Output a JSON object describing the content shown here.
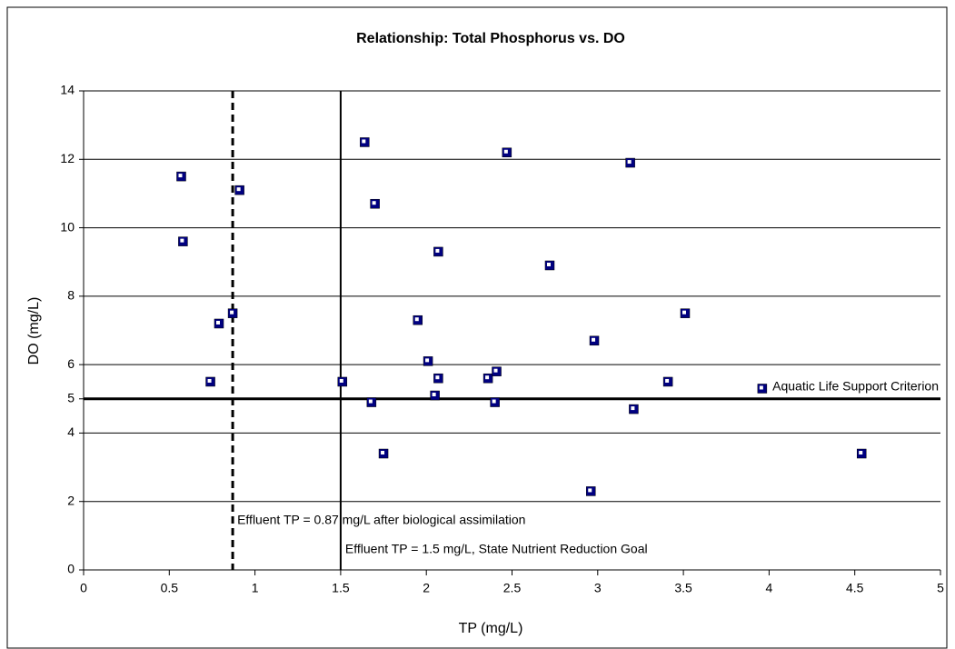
{
  "chart_data": {
    "type": "scatter",
    "title": "Relationship: Total Phosphorus vs. DO",
    "x_label": "TP  (mg/L)",
    "y_label": "DO (mg/L)",
    "xlim": [
      0,
      5
    ],
    "xticks": [
      0,
      0.5,
      1,
      1.5,
      2,
      2.5,
      3,
      3.5,
      4,
      4.5,
      5
    ],
    "ylim": [
      0,
      14
    ],
    "yticks": [
      0,
      2,
      4,
      5,
      6,
      8,
      10,
      12,
      14
    ],
    "grid": true,
    "series": [
      {
        "color": "#000080",
        "x": [
          0.57,
          0.58,
          0.74,
          0.79,
          0.87,
          0.91,
          1.51,
          1.64,
          1.68,
          1.7,
          1.75,
          1.95,
          2.01,
          2.05,
          2.07,
          2.07,
          2.36,
          2.41,
          2.4,
          2.47,
          2.72,
          2.96,
          2.98,
          3.19,
          3.21,
          3.41,
          3.51,
          3.96,
          4.54
        ],
        "values": [
          11.5,
          9.6,
          5.5,
          7.2,
          7.5,
          11.1,
          5.5,
          12.5,
          4.9,
          10.7,
          3.4,
          7.3,
          6.1,
          5.1,
          5.6,
          9.3,
          5.6,
          5.8,
          4.9,
          12.2,
          8.9,
          2.3,
          6.7,
          11.9,
          4.7,
          5.5,
          7.5,
          5.3,
          3.4
        ]
      }
    ],
    "reference_lines": [
      {
        "axis": "x",
        "value": 0.87,
        "style": "dashed",
        "label": "Effluent TP = 0.87 mg/L after biological assimilation"
      },
      {
        "axis": "x",
        "value": 1.5,
        "style": "solid",
        "label": "Effluent TP = 1.5 mg/L, State Nutrient Reduction Goal"
      },
      {
        "axis": "y",
        "value": 5,
        "style": "bold",
        "label": "Aquatic Life Support Criterion"
      }
    ]
  }
}
